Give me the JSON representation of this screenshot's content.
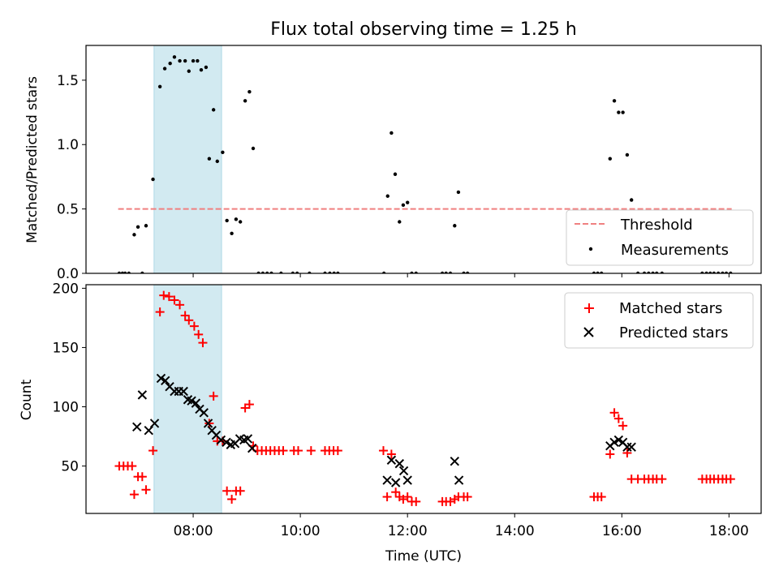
{
  "figure": {
    "title": "Flux total observing time = 1.25 h"
  },
  "chart_data": [
    {
      "type": "scatter",
      "panel": "top",
      "ylabel": "Matched/Predicted stars",
      "xlim": [
        6.0,
        18.6
      ],
      "ylim": [
        0.0,
        1.77
      ],
      "y_ticks": [
        0.0,
        0.5,
        1.0,
        1.5
      ],
      "y_tick_labels": [
        "0.0",
        "0.5",
        "1.0",
        "1.5"
      ],
      "x_ticks": [
        8,
        10,
        12,
        14,
        16,
        18
      ],
      "shaded_span": [
        7.27,
        8.53
      ],
      "shaded_color": "#add8e6",
      "threshold": {
        "name": "Threshold",
        "y": 0.5,
        "x_range": [
          6.6,
          18.05
        ],
        "color": "#f08080"
      },
      "legend": {
        "location": "lower right",
        "entries": [
          "Threshold",
          "Measurements"
        ]
      },
      "series": [
        {
          "name": "Measurements",
          "color": "#000000",
          "marker": "dot",
          "points": [
            [
              6.62,
              0.0
            ],
            [
              6.68,
              0.0
            ],
            [
              6.73,
              0.0
            ],
            [
              6.8,
              0.0
            ],
            [
              6.9,
              0.3
            ],
            [
              6.97,
              0.36
            ],
            [
              7.05,
              0.0
            ],
            [
              7.12,
              0.37
            ],
            [
              7.25,
              0.73
            ],
            [
              7.38,
              1.45
            ],
            [
              7.47,
              1.59
            ],
            [
              7.57,
              1.63
            ],
            [
              7.65,
              1.68
            ],
            [
              7.75,
              1.65
            ],
            [
              7.85,
              1.65
            ],
            [
              7.92,
              1.57
            ],
            [
              8.0,
              1.65
            ],
            [
              8.08,
              1.65
            ],
            [
              8.15,
              1.58
            ],
            [
              8.24,
              1.6
            ],
            [
              8.3,
              0.89
            ],
            [
              8.38,
              1.27
            ],
            [
              8.45,
              0.87
            ],
            [
              8.55,
              0.94
            ],
            [
              8.63,
              0.41
            ],
            [
              8.72,
              0.31
            ],
            [
              8.8,
              0.42
            ],
            [
              8.88,
              0.4
            ],
            [
              8.97,
              1.34
            ],
            [
              9.05,
              1.41
            ],
            [
              9.12,
              0.97
            ],
            [
              9.22,
              0.0
            ],
            [
              9.3,
              0.0
            ],
            [
              9.38,
              0.0
            ],
            [
              9.46,
              0.0
            ],
            [
              9.64,
              0.0
            ],
            [
              9.86,
              0.0
            ],
            [
              9.94,
              0.0
            ],
            [
              10.17,
              0.0
            ],
            [
              10.46,
              0.0
            ],
            [
              10.55,
              0.0
            ],
            [
              10.63,
              0.0
            ],
            [
              10.7,
              0.0
            ],
            [
              11.56,
              0.0
            ],
            [
              11.63,
              0.6
            ],
            [
              11.7,
              1.09
            ],
            [
              11.77,
              0.77
            ],
            [
              11.85,
              0.4
            ],
            [
              11.92,
              0.53
            ],
            [
              12.0,
              0.55
            ],
            [
              12.08,
              0.0
            ],
            [
              12.16,
              0.0
            ],
            [
              12.65,
              0.0
            ],
            [
              12.72,
              0.0
            ],
            [
              12.8,
              0.0
            ],
            [
              12.88,
              0.37
            ],
            [
              12.95,
              0.63
            ],
            [
              13.05,
              0.0
            ],
            [
              13.12,
              0.0
            ],
            [
              15.48,
              0.0
            ],
            [
              15.55,
              0.0
            ],
            [
              15.62,
              0.0
            ],
            [
              15.78,
              0.89
            ],
            [
              15.86,
              1.34
            ],
            [
              15.94,
              1.25
            ],
            [
              16.02,
              1.25
            ],
            [
              16.1,
              0.92
            ],
            [
              16.18,
              0.57
            ],
            [
              16.3,
              0.0
            ],
            [
              16.42,
              0.0
            ],
            [
              16.5,
              0.0
            ],
            [
              16.58,
              0.0
            ],
            [
              16.65,
              0.0
            ],
            [
              16.75,
              0.0
            ],
            [
              17.5,
              0.0
            ],
            [
              17.58,
              0.0
            ],
            [
              17.65,
              0.0
            ],
            [
              17.72,
              0.0
            ],
            [
              17.8,
              0.0
            ],
            [
              17.88,
              0.0
            ],
            [
              17.95,
              0.0
            ],
            [
              18.03,
              0.0
            ]
          ]
        }
      ]
    },
    {
      "type": "scatter",
      "panel": "bottom",
      "xlabel": "Time (UTC)",
      "ylabel": "Count",
      "xlim": [
        6.0,
        18.6
      ],
      "ylim": [
        10,
        203
      ],
      "y_ticks": [
        50,
        100,
        150,
        200
      ],
      "y_tick_labels": [
        "50",
        "100",
        "150",
        "200"
      ],
      "x_ticks": [
        8,
        10,
        12,
        14,
        16,
        18
      ],
      "x_tick_labels": [
        "08:00",
        "10:00",
        "12:00",
        "14:00",
        "16:00",
        "18:00"
      ],
      "shaded_span": [
        7.27,
        8.53
      ],
      "shaded_color": "#add8e6",
      "legend": {
        "location": "upper right",
        "entries": [
          "Matched stars",
          "Predicted stars"
        ]
      },
      "series": [
        {
          "name": "Matched stars",
          "color": "#ff0000",
          "marker": "plus",
          "points": [
            [
              6.62,
              50
            ],
            [
              6.7,
              50
            ],
            [
              6.78,
              50
            ],
            [
              6.86,
              50
            ],
            [
              6.9,
              26
            ],
            [
              6.97,
              41
            ],
            [
              7.05,
              41
            ],
            [
              7.12,
              30
            ],
            [
              7.25,
              63
            ],
            [
              7.38,
              180
            ],
            [
              7.45,
              194
            ],
            [
              7.55,
              193
            ],
            [
              7.65,
              190
            ],
            [
              7.75,
              186
            ],
            [
              7.85,
              177
            ],
            [
              7.92,
              173
            ],
            [
              8.02,
              168
            ],
            [
              8.1,
              161
            ],
            [
              8.18,
              154
            ],
            [
              8.3,
              86
            ],
            [
              8.38,
              109
            ],
            [
              8.45,
              71
            ],
            [
              8.55,
              71
            ],
            [
              8.63,
              29
            ],
            [
              8.72,
              22
            ],
            [
              8.8,
              29
            ],
            [
              8.88,
              29
            ],
            [
              8.97,
              99
            ],
            [
              9.05,
              102
            ],
            [
              9.12,
              67
            ],
            [
              9.2,
              63
            ],
            [
              9.28,
              63
            ],
            [
              9.36,
              63
            ],
            [
              9.44,
              63
            ],
            [
              9.52,
              63
            ],
            [
              9.6,
              63
            ],
            [
              9.68,
              63
            ],
            [
              9.88,
              63
            ],
            [
              9.96,
              63
            ],
            [
              10.2,
              63
            ],
            [
              10.46,
              63
            ],
            [
              10.54,
              63
            ],
            [
              10.62,
              63
            ],
            [
              10.7,
              63
            ],
            [
              11.55,
              63
            ],
            [
              11.62,
              24
            ],
            [
              11.7,
              60
            ],
            [
              11.78,
              28
            ],
            [
              11.85,
              24
            ],
            [
              11.92,
              22
            ],
            [
              12.0,
              24
            ],
            [
              12.08,
              20
            ],
            [
              12.16,
              20
            ],
            [
              12.65,
              20
            ],
            [
              12.72,
              20
            ],
            [
              12.8,
              20
            ],
            [
              12.88,
              22
            ],
            [
              12.95,
              24
            ],
            [
              13.05,
              24
            ],
            [
              13.12,
              24
            ],
            [
              15.48,
              24
            ],
            [
              15.55,
              24
            ],
            [
              15.62,
              24
            ],
            [
              15.78,
              60
            ],
            [
              15.86,
              95
            ],
            [
              15.94,
              90
            ],
            [
              16.02,
              84
            ],
            [
              16.1,
              61
            ],
            [
              16.18,
              39
            ],
            [
              16.3,
              39
            ],
            [
              16.42,
              39
            ],
            [
              16.5,
              39
            ],
            [
              16.58,
              39
            ],
            [
              16.65,
              39
            ],
            [
              16.75,
              39
            ],
            [
              17.5,
              39
            ],
            [
              17.58,
              39
            ],
            [
              17.65,
              39
            ],
            [
              17.72,
              39
            ],
            [
              17.8,
              39
            ],
            [
              17.88,
              39
            ],
            [
              17.95,
              39
            ],
            [
              18.03,
              39
            ]
          ]
        },
        {
          "name": "Predicted stars",
          "color": "#000000",
          "marker": "x",
          "points": [
            [
              6.95,
              83
            ],
            [
              7.05,
              110
            ],
            [
              7.17,
              80
            ],
            [
              7.28,
              86
            ],
            [
              7.4,
              124
            ],
            [
              7.48,
              122
            ],
            [
              7.56,
              117
            ],
            [
              7.65,
              113
            ],
            [
              7.73,
              113
            ],
            [
              7.82,
              113
            ],
            [
              7.9,
              106
            ],
            [
              7.97,
              105
            ],
            [
              8.05,
              103
            ],
            [
              8.12,
              98
            ],
            [
              8.2,
              95
            ],
            [
              8.28,
              86
            ],
            [
              8.35,
              80
            ],
            [
              8.43,
              76
            ],
            [
              8.52,
              72
            ],
            [
              8.62,
              70
            ],
            [
              8.7,
              68
            ],
            [
              8.78,
              69
            ],
            [
              8.87,
              73
            ],
            [
              8.95,
              72
            ],
            [
              9.02,
              73
            ],
            [
              9.1,
              65
            ],
            [
              11.62,
              38
            ],
            [
              11.7,
              55
            ],
            [
              11.78,
              36
            ],
            [
              11.85,
              52
            ],
            [
              11.93,
              46
            ],
            [
              12.0,
              38
            ],
            [
              12.88,
              54
            ],
            [
              12.96,
              38
            ],
            [
              15.78,
              67
            ],
            [
              15.86,
              70
            ],
            [
              15.94,
              72
            ],
            [
              16.02,
              70
            ],
            [
              16.1,
              66
            ],
            [
              16.18,
              66
            ]
          ]
        }
      ]
    }
  ]
}
